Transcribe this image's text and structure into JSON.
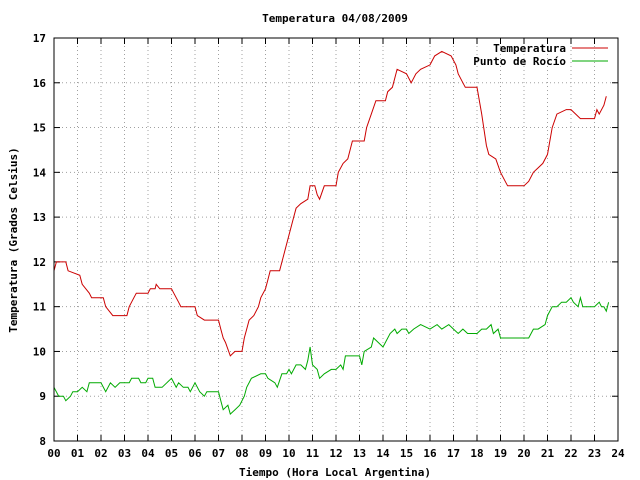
{
  "chart_data": {
    "type": "line",
    "title": "Temperatura 04/08/2009",
    "xlabel": "Tiempo (Hora Local Argentina)",
    "ylabel": "Temperatura (Grados Celsius)",
    "xlim": [
      0,
      24
    ],
    "ylim": [
      8,
      17
    ],
    "x_ticks": [
      "00",
      "01",
      "02",
      "03",
      "04",
      "05",
      "06",
      "07",
      "08",
      "09",
      "10",
      "11",
      "12",
      "13",
      "14",
      "15",
      "16",
      "17",
      "18",
      "19",
      "20",
      "21",
      "22",
      "23",
      "24"
    ],
    "y_ticks": [
      8,
      9,
      10,
      11,
      12,
      13,
      14,
      15,
      16,
      17
    ],
    "grid": true,
    "legend_position": "top-right",
    "series": [
      {
        "name": "Temperatura",
        "color": "#cc0000",
        "points": [
          [
            0.0,
            11.8
          ],
          [
            0.1,
            12.0
          ],
          [
            0.5,
            12.0
          ],
          [
            0.6,
            11.8
          ],
          [
            1.1,
            11.7
          ],
          [
            1.2,
            11.5
          ],
          [
            1.5,
            11.3
          ],
          [
            1.6,
            11.2
          ],
          [
            2.1,
            11.2
          ],
          [
            2.2,
            11.0
          ],
          [
            2.5,
            10.8
          ],
          [
            3.1,
            10.8
          ],
          [
            3.2,
            11.0
          ],
          [
            3.4,
            11.2
          ],
          [
            3.5,
            11.3
          ],
          [
            4.0,
            11.3
          ],
          [
            4.1,
            11.4
          ],
          [
            4.3,
            11.4
          ],
          [
            4.35,
            11.5
          ],
          [
            4.5,
            11.4
          ],
          [
            5.0,
            11.4
          ],
          [
            5.1,
            11.3
          ],
          [
            5.3,
            11.1
          ],
          [
            5.4,
            11.0
          ],
          [
            6.0,
            11.0
          ],
          [
            6.1,
            10.8
          ],
          [
            6.4,
            10.7
          ],
          [
            7.0,
            10.7
          ],
          [
            7.1,
            10.5
          ],
          [
            7.2,
            10.3
          ],
          [
            7.3,
            10.2
          ],
          [
            7.5,
            9.9
          ],
          [
            7.7,
            10.0
          ],
          [
            8.0,
            10.0
          ],
          [
            8.1,
            10.3
          ],
          [
            8.2,
            10.5
          ],
          [
            8.3,
            10.7
          ],
          [
            8.5,
            10.8
          ],
          [
            8.7,
            11.0
          ],
          [
            8.8,
            11.2
          ],
          [
            9.0,
            11.4
          ],
          [
            9.1,
            11.6
          ],
          [
            9.2,
            11.8
          ],
          [
            9.6,
            11.8
          ],
          [
            9.8,
            12.2
          ],
          [
            10.0,
            12.6
          ],
          [
            10.2,
            13.0
          ],
          [
            10.3,
            13.2
          ],
          [
            10.5,
            13.3
          ],
          [
            10.8,
            13.4
          ],
          [
            10.9,
            13.7
          ],
          [
            11.1,
            13.7
          ],
          [
            11.2,
            13.5
          ],
          [
            11.3,
            13.4
          ],
          [
            11.5,
            13.7
          ],
          [
            12.0,
            13.7
          ],
          [
            12.1,
            14.0
          ],
          [
            12.3,
            14.2
          ],
          [
            12.5,
            14.3
          ],
          [
            12.7,
            14.7
          ],
          [
            13.2,
            14.7
          ],
          [
            13.3,
            15.0
          ],
          [
            13.5,
            15.3
          ],
          [
            13.7,
            15.6
          ],
          [
            14.1,
            15.6
          ],
          [
            14.2,
            15.8
          ],
          [
            14.4,
            15.9
          ],
          [
            14.6,
            16.3
          ],
          [
            15.0,
            16.2
          ],
          [
            15.2,
            16.0
          ],
          [
            15.4,
            16.2
          ],
          [
            15.6,
            16.3
          ],
          [
            16.0,
            16.4
          ],
          [
            16.2,
            16.6
          ],
          [
            16.5,
            16.7
          ],
          [
            16.9,
            16.6
          ],
          [
            17.1,
            16.4
          ],
          [
            17.2,
            16.2
          ],
          [
            17.4,
            16.0
          ],
          [
            17.5,
            15.9
          ],
          [
            18.0,
            15.9
          ],
          [
            18.2,
            15.3
          ],
          [
            18.4,
            14.6
          ],
          [
            18.5,
            14.4
          ],
          [
            18.8,
            14.3
          ],
          [
            19.0,
            14.0
          ],
          [
            19.2,
            13.8
          ],
          [
            19.3,
            13.7
          ],
          [
            20.0,
            13.7
          ],
          [
            20.2,
            13.8
          ],
          [
            20.4,
            14.0
          ],
          [
            20.6,
            14.1
          ],
          [
            20.8,
            14.2
          ],
          [
            21.0,
            14.4
          ],
          [
            21.2,
            15.0
          ],
          [
            21.4,
            15.3
          ],
          [
            21.8,
            15.4
          ],
          [
            22.0,
            15.4
          ],
          [
            22.2,
            15.3
          ],
          [
            22.4,
            15.2
          ],
          [
            23.0,
            15.2
          ],
          [
            23.1,
            15.4
          ],
          [
            23.2,
            15.3
          ],
          [
            23.4,
            15.5
          ],
          [
            23.5,
            15.7
          ]
        ]
      },
      {
        "name": "Punto de Rocío",
        "color": "#00aa00",
        "points": [
          [
            0.0,
            9.2
          ],
          [
            0.2,
            9.0
          ],
          [
            0.4,
            9.0
          ],
          [
            0.5,
            8.9
          ],
          [
            0.7,
            9.0
          ],
          [
            0.8,
            9.1
          ],
          [
            1.0,
            9.1
          ],
          [
            1.2,
            9.2
          ],
          [
            1.4,
            9.1
          ],
          [
            1.5,
            9.3
          ],
          [
            2.0,
            9.3
          ],
          [
            2.2,
            9.1
          ],
          [
            2.4,
            9.3
          ],
          [
            2.6,
            9.2
          ],
          [
            2.8,
            9.3
          ],
          [
            3.2,
            9.3
          ],
          [
            3.3,
            9.4
          ],
          [
            3.6,
            9.4
          ],
          [
            3.7,
            9.3
          ],
          [
            3.9,
            9.3
          ],
          [
            4.0,
            9.4
          ],
          [
            4.2,
            9.4
          ],
          [
            4.3,
            9.2
          ],
          [
            4.6,
            9.2
          ],
          [
            4.8,
            9.3
          ],
          [
            5.0,
            9.4
          ],
          [
            5.2,
            9.2
          ],
          [
            5.3,
            9.3
          ],
          [
            5.5,
            9.2
          ],
          [
            5.7,
            9.2
          ],
          [
            5.8,
            9.1
          ],
          [
            6.0,
            9.3
          ],
          [
            6.2,
            9.1
          ],
          [
            6.4,
            9.0
          ],
          [
            6.5,
            9.1
          ],
          [
            7.0,
            9.1
          ],
          [
            7.1,
            8.9
          ],
          [
            7.2,
            8.7
          ],
          [
            7.4,
            8.8
          ],
          [
            7.5,
            8.6
          ],
          [
            7.7,
            8.7
          ],
          [
            7.9,
            8.8
          ],
          [
            8.1,
            9.0
          ],
          [
            8.2,
            9.2
          ],
          [
            8.4,
            9.4
          ],
          [
            8.8,
            9.5
          ],
          [
            9.0,
            9.5
          ],
          [
            9.1,
            9.4
          ],
          [
            9.4,
            9.3
          ],
          [
            9.5,
            9.2
          ],
          [
            9.7,
            9.5
          ],
          [
            9.9,
            9.5
          ],
          [
            10.0,
            9.6
          ],
          [
            10.1,
            9.5
          ],
          [
            10.3,
            9.7
          ],
          [
            10.5,
            9.7
          ],
          [
            10.7,
            9.6
          ],
          [
            10.8,
            9.8
          ],
          [
            10.9,
            10.1
          ],
          [
            11.0,
            9.7
          ],
          [
            11.2,
            9.6
          ],
          [
            11.3,
            9.4
          ],
          [
            11.5,
            9.5
          ],
          [
            11.8,
            9.6
          ],
          [
            12.0,
            9.6
          ],
          [
            12.2,
            9.7
          ],
          [
            12.3,
            9.6
          ],
          [
            12.4,
            9.9
          ],
          [
            13.0,
            9.9
          ],
          [
            13.1,
            9.7
          ],
          [
            13.2,
            10.0
          ],
          [
            13.5,
            10.1
          ],
          [
            13.6,
            10.3
          ],
          [
            13.8,
            10.2
          ],
          [
            14.0,
            10.1
          ],
          [
            14.3,
            10.4
          ],
          [
            14.5,
            10.5
          ],
          [
            14.6,
            10.4
          ],
          [
            14.8,
            10.5
          ],
          [
            15.0,
            10.5
          ],
          [
            15.1,
            10.4
          ],
          [
            15.3,
            10.5
          ],
          [
            15.6,
            10.6
          ],
          [
            16.0,
            10.5
          ],
          [
            16.3,
            10.6
          ],
          [
            16.5,
            10.5
          ],
          [
            16.8,
            10.6
          ],
          [
            17.0,
            10.5
          ],
          [
            17.2,
            10.4
          ],
          [
            17.4,
            10.5
          ],
          [
            17.6,
            10.4
          ],
          [
            18.0,
            10.4
          ],
          [
            18.2,
            10.5
          ],
          [
            18.4,
            10.5
          ],
          [
            18.6,
            10.6
          ],
          [
            18.7,
            10.4
          ],
          [
            18.9,
            10.5
          ],
          [
            19.0,
            10.3
          ],
          [
            19.4,
            10.3
          ],
          [
            20.0,
            10.3
          ],
          [
            20.2,
            10.3
          ],
          [
            20.4,
            10.5
          ],
          [
            20.6,
            10.5
          ],
          [
            20.9,
            10.6
          ],
          [
            21.0,
            10.8
          ],
          [
            21.2,
            11.0
          ],
          [
            21.4,
            11.0
          ],
          [
            21.6,
            11.1
          ],
          [
            21.8,
            11.1
          ],
          [
            22.0,
            11.2
          ],
          [
            22.1,
            11.1
          ],
          [
            22.3,
            11.0
          ],
          [
            22.4,
            11.2
          ],
          [
            22.5,
            11.0
          ],
          [
            23.0,
            11.0
          ],
          [
            23.2,
            11.1
          ],
          [
            23.3,
            11.0
          ],
          [
            23.4,
            11.0
          ],
          [
            23.5,
            10.9
          ],
          [
            23.6,
            11.1
          ]
        ]
      }
    ]
  }
}
